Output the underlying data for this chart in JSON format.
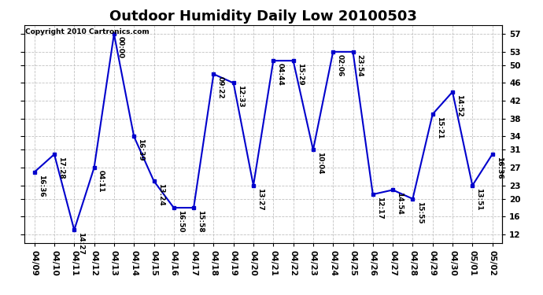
{
  "title": "Outdoor Humidity Daily Low 20100503",
  "copyright": "Copyright 2010 Cartronics.com",
  "dates": [
    "04/09",
    "04/10",
    "04/11",
    "04/12",
    "04/13",
    "04/14",
    "04/15",
    "04/16",
    "04/17",
    "04/18",
    "04/19",
    "04/20",
    "04/21",
    "04/22",
    "04/23",
    "04/24",
    "04/25",
    "04/26",
    "04/27",
    "04/28",
    "04/29",
    "04/30",
    "05/01",
    "05/02"
  ],
  "values": [
    26,
    30,
    13,
    27,
    57,
    34,
    24,
    18,
    18,
    48,
    46,
    23,
    51,
    51,
    31,
    53,
    53,
    21,
    22,
    20,
    39,
    44,
    23,
    30
  ],
  "labels": [
    "16:36",
    "17:28",
    "14:27",
    "04:11",
    "00:00",
    "16:39",
    "13:24",
    "16:50",
    "15:58",
    "09:22",
    "12:33",
    "13:27",
    "04:44",
    "15:29",
    "10:04",
    "02:06",
    "23:54",
    "12:17",
    "14:54",
    "15:55",
    "15:21",
    "14:52",
    "13:51",
    "16:36"
  ],
  "yticks": [
    12,
    16,
    20,
    23,
    27,
    31,
    34,
    38,
    42,
    46,
    50,
    53,
    57
  ],
  "ylim": [
    10,
    59
  ],
  "line_color": "#0000cc",
  "marker_color": "#0000cc",
  "bg_color": "#ffffff",
  "grid_color": "#bbbbbb",
  "title_fontsize": 13,
  "label_fontsize": 6.5,
  "tick_fontsize": 7.5,
  "copyright_fontsize": 6.5
}
